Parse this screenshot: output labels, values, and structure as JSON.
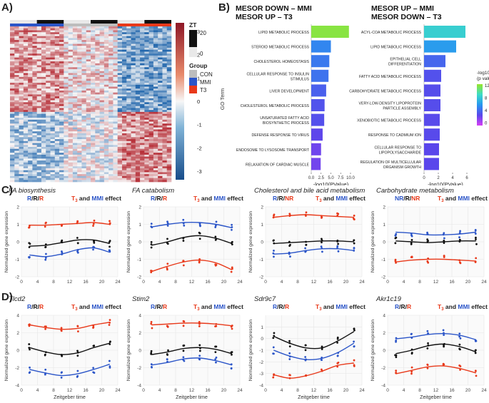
{
  "panel_labels": {
    "a": "A)",
    "b": "B)",
    "c": "C)",
    "d": "D)"
  },
  "heatmap": {
    "zt_title": "ZT",
    "zt_tick_high": "20",
    "zt_tick_low": "0",
    "group_title": "Group",
    "groups": [
      {
        "label": "CON",
        "color": "#bdbdbd"
      },
      {
        "label": "MMI",
        "color": "#2b55c8"
      },
      {
        "label": "T3",
        "color": "#e8391a"
      }
    ],
    "colorbar_ticks": [
      "3",
      "2",
      "1",
      "0",
      "-1",
      "-2",
      "-3"
    ],
    "colorbar_colors": {
      "high": "#b2182b",
      "mid": "#ffffff",
      "low": "#2166ac"
    }
  },
  "chart_data": [
    {
      "type": "bar",
      "id": "b-left",
      "title_lines": [
        "MESOR DOWN – MMI",
        "MESOR UP – T3"
      ],
      "ylabel": "GO Term",
      "xlabel": "-log10(PValue)",
      "xlim": [
        0,
        10
      ],
      "xticks": [
        "0.0",
        "2.5",
        "5.0",
        "7.5",
        "10.0"
      ],
      "categories": [
        "LIPID METABOLIC PROCESS",
        "STEROID METABOLIC PROCESS",
        "CHOLESTEROL HOMEOSTASIS",
        "CELLULAR RESPONSE TO INSULIN STIMULUS",
        "LIVER DEVELOPMENT",
        "CHOLESTEROL METABOLIC PROCESS",
        "UNSATURATED FATTY ACID BIOSYNTHETIC PROCESS",
        "DEFENSE RESPONSE TO VIRUS",
        "ENDOSOME TO LYSOSOME TRANSPORT",
        "RELAXATION OF CARDIAC MUSCLE"
      ],
      "values": [
        9.6,
        5.0,
        4.6,
        4.4,
        3.8,
        3.4,
        3.3,
        2.9,
        2.5,
        2.4
      ]
    },
    {
      "type": "bar",
      "id": "b-right",
      "title_lines": [
        "MESOR UP – MMI",
        "MESOR DOWN – T3"
      ],
      "xlabel": "-log10(PValue)",
      "xlim": [
        0,
        6
      ],
      "xticks": [
        "0",
        "2",
        "4",
        "6"
      ],
      "legend_title": [
        "-log10",
        "(p value)"
      ],
      "legend_ticks": [
        "12",
        "8",
        "4",
        "0"
      ],
      "categories": [
        "ACYL-COA METABOLIC PROCESS",
        "LIPID METABOLIC PROCESS",
        "EPITHELIAL CELL DIFFERENTIATION",
        "FATTY ACID METABOLIC PROCESS",
        "CARBOHYDRATE METABOLIC PROCESS",
        "VERY-LOW-DENSITY LIPOPROTEIN PARTICLE ASSEMBLY",
        "XENOBIOTIC METABOLIC PROCESS",
        "RESPONSE TO CADMIUM ION",
        "CELLULAR RESPONSE TO LIPOPOLYSACCHARIDE",
        "REGULATION OF MULTICELLULAR ORGANISM GROWTH"
      ],
      "values": [
        5.8,
        4.5,
        3.0,
        2.4,
        2.3,
        2.3,
        2.2,
        2.2,
        2.1,
        2.1
      ]
    },
    {
      "type": "line",
      "id": "c1",
      "title": "FA biosynthesis",
      "rr_parts": [
        {
          "t": "R",
          "c": "blue"
        },
        {
          "t": "/",
          "c": "black"
        },
        {
          "t": "R",
          "c": "black"
        },
        {
          "t": "/",
          "c": "black"
        },
        {
          "t": "R",
          "c": "red"
        }
      ],
      "xlabel": "",
      "ylabel": "Normalized gene expression",
      "ylim": [
        -2,
        2
      ],
      "yticks": [
        -2,
        -1,
        0,
        1,
        2
      ],
      "series": [
        {
          "color": "red",
          "x": [
            2,
            6,
            10,
            14,
            18,
            22
          ],
          "y": [
            0.95,
            0.95,
            1.0,
            1.05,
            1.1,
            1.0
          ]
        },
        {
          "color": "black",
          "x": [
            2,
            6,
            10,
            14,
            18,
            22
          ],
          "y": [
            -0.25,
            -0.2,
            -0.05,
            0.1,
            0.1,
            -0.1
          ]
        },
        {
          "color": "blue",
          "x": [
            2,
            6,
            10,
            14,
            18,
            22
          ],
          "y": [
            -0.75,
            -0.85,
            -0.7,
            -0.45,
            -0.35,
            -0.6
          ]
        }
      ]
    },
    {
      "type": "line",
      "id": "c2",
      "title": "FA catabolism",
      "rr_parts": [
        {
          "t": "R",
          "c": "blue"
        },
        {
          "t": "/",
          "c": "black"
        },
        {
          "t": "R",
          "c": "black"
        },
        {
          "t": "/",
          "c": "black"
        },
        {
          "t": "R",
          "c": "red"
        }
      ],
      "xlabel": "",
      "ylabel": "Normalized gene expression",
      "ylim": [
        -2,
        2
      ],
      "yticks": [
        -2,
        -1,
        0,
        1,
        2
      ],
      "series": [
        {
          "color": "blue",
          "x": [
            2,
            6,
            10,
            14,
            18,
            22
          ],
          "y": [
            0.85,
            1.0,
            1.1,
            1.1,
            1.0,
            0.8
          ]
        },
        {
          "color": "black",
          "x": [
            2,
            6,
            10,
            14,
            18,
            22
          ],
          "y": [
            -0.2,
            0.0,
            0.25,
            0.35,
            0.2,
            -0.1
          ]
        },
        {
          "color": "red",
          "x": [
            2,
            6,
            10,
            14,
            18,
            22
          ],
          "y": [
            -1.7,
            -1.4,
            -1.15,
            -1.05,
            -1.2,
            -1.6
          ]
        }
      ]
    },
    {
      "type": "line",
      "id": "c3",
      "title": "Cholesterol and bile acid metabolism",
      "rr_parts": [
        {
          "t": "R",
          "c": "blue"
        },
        {
          "t": "/",
          "c": "black"
        },
        {
          "t": "R",
          "c": "black"
        },
        {
          "t": "/",
          "c": "black"
        },
        {
          "t": "NR",
          "c": "red"
        }
      ],
      "xlabel": "",
      "ylabel": "Normalized gene expression",
      "ylim": [
        -2,
        2
      ],
      "yticks": [
        -2,
        -1,
        0,
        1,
        2
      ],
      "series": [
        {
          "color": "red",
          "x": [
            2,
            6,
            10,
            14,
            18,
            22
          ],
          "y": [
            1.4,
            1.5,
            1.55,
            1.5,
            1.45,
            1.4
          ]
        },
        {
          "color": "black",
          "x": [
            2,
            6,
            10,
            14,
            18,
            22
          ],
          "y": [
            -0.1,
            -0.05,
            0.0,
            0.05,
            0.05,
            0.0
          ]
        },
        {
          "color": "blue",
          "x": [
            2,
            6,
            10,
            14,
            18,
            22
          ],
          "y": [
            -0.7,
            -0.65,
            -0.5,
            -0.4,
            -0.4,
            -0.5
          ]
        }
      ]
    },
    {
      "type": "line",
      "id": "c4",
      "title": "Carbohydrate metabolism",
      "rr_parts": [
        {
          "t": "NR",
          "c": "blue"
        },
        {
          "t": "/",
          "c": "black"
        },
        {
          "t": "R",
          "c": "black"
        },
        {
          "t": "/",
          "c": "black"
        },
        {
          "t": "NR",
          "c": "red"
        }
      ],
      "xlabel": "",
      "ylabel": "Normalized gene expression",
      "ylim": [
        -2,
        2
      ],
      "yticks": [
        -2,
        -1,
        0,
        1,
        2
      ],
      "series": [
        {
          "color": "blue",
          "x": [
            2,
            6,
            10,
            14,
            18,
            22
          ],
          "y": [
            0.55,
            0.5,
            0.4,
            0.4,
            0.45,
            0.55
          ]
        },
        {
          "color": "black",
          "x": [
            2,
            6,
            10,
            14,
            18,
            22
          ],
          "y": [
            0.05,
            0.0,
            -0.05,
            0.0,
            0.05,
            0.05
          ]
        },
        {
          "color": "red",
          "x": [
            2,
            6,
            10,
            14,
            18,
            22
          ],
          "y": [
            -1.15,
            -1.05,
            -1.0,
            -1.0,
            -1.05,
            -1.1
          ]
        }
      ]
    },
    {
      "type": "line",
      "id": "d1",
      "title": "Tlcd2",
      "rr_parts": [
        {
          "t": "R",
          "c": "blue"
        },
        {
          "t": "/",
          "c": "black"
        },
        {
          "t": "R",
          "c": "black"
        },
        {
          "t": "/",
          "c": "black"
        },
        {
          "t": "R",
          "c": "red"
        }
      ],
      "xlabel": "Zeitgeber time",
      "ylabel": "Normalized gene expression",
      "ylim": [
        -4,
        4
      ],
      "yticks": [
        -4,
        -2,
        0,
        2,
        4
      ],
      "series": [
        {
          "color": "red",
          "x": [
            2,
            6,
            10,
            14,
            18,
            22
          ],
          "y": [
            2.9,
            2.6,
            2.4,
            2.5,
            2.9,
            3.2
          ]
        },
        {
          "color": "black",
          "x": [
            2,
            6,
            10,
            14,
            18,
            22
          ],
          "y": [
            0.3,
            -0.2,
            -0.5,
            -0.3,
            0.3,
            0.8
          ]
        },
        {
          "color": "blue",
          "x": [
            2,
            6,
            10,
            14,
            18,
            22
          ],
          "y": [
            -2.2,
            -2.6,
            -2.9,
            -2.7,
            -2.2,
            -1.6
          ]
        }
      ]
    },
    {
      "type": "line",
      "id": "d2",
      "title": "Stim2",
      "rr_parts": [
        {
          "t": "R",
          "c": "blue"
        },
        {
          "t": "/",
          "c": "black"
        },
        {
          "t": "R",
          "c": "black"
        },
        {
          "t": "/",
          "c": "black"
        },
        {
          "t": "R",
          "c": "red"
        }
      ],
      "xlabel": "Zeitgeber time",
      "ylabel": "Normalized gene expression",
      "ylim": [
        -4,
        4
      ],
      "yticks": [
        -4,
        -2,
        0,
        2,
        4
      ],
      "series": [
        {
          "color": "red",
          "x": [
            2,
            6,
            10,
            14,
            18,
            22
          ],
          "y": [
            2.9,
            3.0,
            3.1,
            3.1,
            3.0,
            2.8
          ]
        },
        {
          "color": "black",
          "x": [
            2,
            6,
            10,
            14,
            18,
            22
          ],
          "y": [
            -0.5,
            -0.2,
            0.2,
            0.3,
            0.1,
            -0.4
          ]
        },
        {
          "color": "blue",
          "x": [
            2,
            6,
            10,
            14,
            18,
            22
          ],
          "y": [
            -1.7,
            -1.4,
            -1.0,
            -0.9,
            -1.2,
            -1.7
          ]
        }
      ]
    },
    {
      "type": "line",
      "id": "d3",
      "title": "Sdr9c7",
      "rr_parts": [
        {
          "t": "R",
          "c": "blue"
        },
        {
          "t": "/",
          "c": "black"
        },
        {
          "t": "R",
          "c": "black"
        },
        {
          "t": "/",
          "c": "black"
        },
        {
          "t": "R",
          "c": "red"
        }
      ],
      "xlabel": "Zeitgeber time",
      "ylabel": "Normalized gene expression",
      "ylim": [
        -4,
        2
      ],
      "yticks": [
        -4,
        -3,
        -2,
        -1,
        0,
        1
      ],
      "series": [
        {
          "color": "black",
          "x": [
            2,
            6,
            10,
            14,
            18,
            22
          ],
          "y": [
            0.2,
            -0.4,
            -0.8,
            -0.8,
            -0.2,
            0.6
          ]
        },
        {
          "color": "blue",
          "x": [
            2,
            6,
            10,
            14,
            18,
            22
          ],
          "y": [
            -1.0,
            -1.5,
            -1.8,
            -1.7,
            -1.2,
            -0.4
          ]
        },
        {
          "color": "red",
          "x": [
            2,
            6,
            10,
            14,
            18,
            22
          ],
          "y": [
            -3.1,
            -3.4,
            -3.2,
            -2.8,
            -2.3,
            -2.1
          ]
        }
      ]
    },
    {
      "type": "line",
      "id": "d4",
      "title": "Akr1c19",
      "rr_parts": [
        {
          "t": "R",
          "c": "blue"
        },
        {
          "t": "/",
          "c": "black"
        },
        {
          "t": "R",
          "c": "black"
        },
        {
          "t": "/",
          "c": "black"
        },
        {
          "t": "R",
          "c": "red"
        }
      ],
      "xlabel": "Zeitgeber time",
      "ylabel": "Normalized gene expression",
      "ylim": [
        -4,
        4
      ],
      "yticks": [
        -4,
        -2,
        0,
        2,
        4
      ],
      "series": [
        {
          "color": "blue",
          "x": [
            2,
            6,
            10,
            14,
            18,
            22
          ],
          "y": [
            1.3,
            1.5,
            1.8,
            1.9,
            1.7,
            1.2
          ]
        },
        {
          "color": "black",
          "x": [
            2,
            6,
            10,
            14,
            18,
            22
          ],
          "y": [
            -0.4,
            0.0,
            0.5,
            0.7,
            0.4,
            -0.2
          ]
        },
        {
          "color": "red",
          "x": [
            2,
            6,
            10,
            14,
            18,
            22
          ],
          "y": [
            -2.7,
            -2.3,
            -1.9,
            -1.8,
            -2.1,
            -2.6
          ]
        }
      ]
    }
  ],
  "effect_label": {
    "t3_main": "T",
    "t3_sub": "3",
    "and": " and ",
    "mmi": "MMI",
    "effect": " effect"
  },
  "x_axis": {
    "xlim": [
      0,
      24
    ],
    "xticks": [
      0,
      4,
      8,
      12,
      16,
      20,
      24
    ]
  },
  "colors": {
    "red": "#e8391a",
    "blue": "#2b55c8",
    "black": "#111111"
  }
}
